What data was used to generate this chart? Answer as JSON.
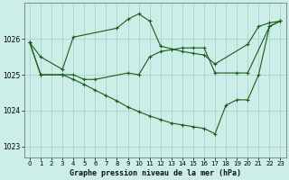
{
  "title": "Graphe pression niveau de la mer (hPa)",
  "bg_color": "#cceee8",
  "grid_color": "#aad4cc",
  "line_color": "#1a5c1a",
  "xlim": [
    -0.5,
    23.5
  ],
  "ylim": [
    1022.7,
    1027.0
  ],
  "yticks": [
    1023,
    1024,
    1025,
    1026
  ],
  "xticks": [
    0,
    1,
    2,
    3,
    4,
    5,
    6,
    7,
    8,
    9,
    10,
    11,
    12,
    13,
    14,
    15,
    16,
    17,
    18,
    19,
    20,
    21,
    22,
    23
  ],
  "series1": {
    "x": [
      0,
      1,
      3,
      4,
      8,
      9,
      10,
      11,
      12,
      14,
      15,
      16,
      17,
      20,
      21,
      22,
      23
    ],
    "y": [
      1025.9,
      1025.5,
      1025.15,
      1026.05,
      1026.3,
      1026.55,
      1026.7,
      1026.5,
      1025.8,
      1025.65,
      1025.6,
      1025.55,
      1025.3,
      1025.85,
      1026.35,
      1026.45,
      1026.5
    ]
  },
  "series2": {
    "x": [
      0,
      1,
      3,
      4,
      5,
      6,
      9,
      10,
      11,
      12,
      13,
      14,
      15,
      16,
      17,
      19,
      20,
      22,
      23
    ],
    "y": [
      1025.9,
      1025.0,
      1025.0,
      1025.0,
      1024.87,
      1024.87,
      1025.05,
      1025.0,
      1025.5,
      1025.65,
      1025.7,
      1025.75,
      1025.75,
      1025.75,
      1025.05,
      1025.05,
      1025.05,
      1026.35,
      1026.5
    ]
  },
  "series3": {
    "x": [
      0,
      1,
      3,
      4,
      5,
      6,
      7,
      8,
      9,
      10,
      11,
      12,
      13,
      14,
      15,
      16,
      17,
      18,
      19,
      20,
      21,
      22,
      23
    ],
    "y": [
      1025.9,
      1025.0,
      1025.0,
      1024.87,
      1024.73,
      1024.57,
      1024.42,
      1024.27,
      1024.1,
      1023.97,
      1023.85,
      1023.75,
      1023.65,
      1023.6,
      1023.55,
      1023.5,
      1023.35,
      1024.15,
      1024.3,
      1024.3,
      1025.0,
      1026.35,
      1026.5
    ]
  }
}
